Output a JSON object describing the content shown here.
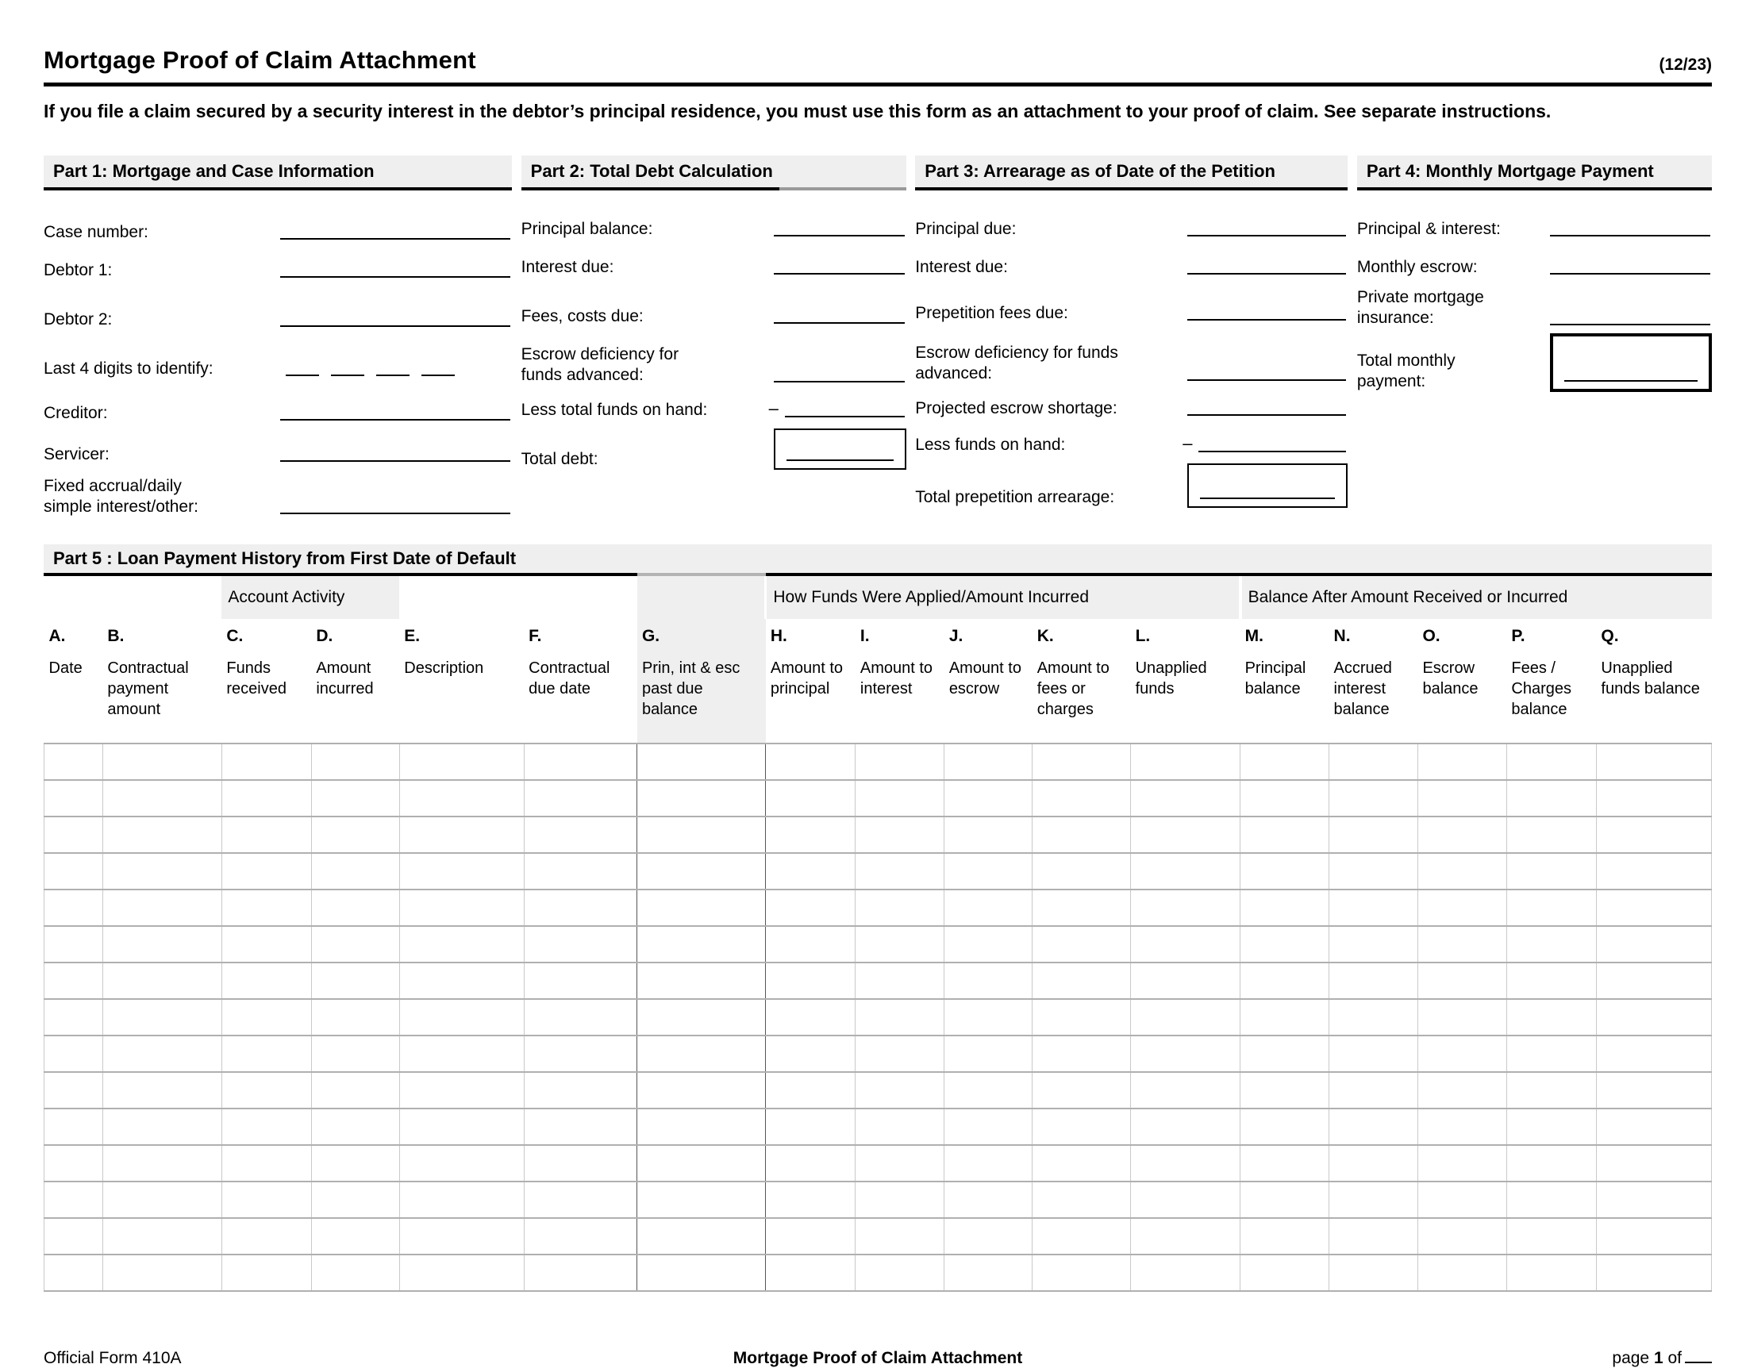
{
  "header": {
    "title": "Mortgage Proof of Claim Attachment",
    "edition": "(12/23)",
    "instruction": "If you file a claim secured by a security interest in the debtor’s principal residence, you must use this form as an attachment to your proof of claim. See separate instructions."
  },
  "parts": [
    {
      "id": "part1-mortgage-and-case-information",
      "title": "Part 1: Mortgage and Case Information",
      "fields": [
        {
          "name": "case-number",
          "label": "Case number:",
          "h": 52
        },
        {
          "name": "debtor-1",
          "label": "Debtor 1:",
          "h": 48
        },
        {
          "name": "debtor-2",
          "label": "Debtor 2:",
          "h": 62
        },
        {
          "name": "last-4-digits",
          "label": "Last 4 digits to identify:",
          "type": "digits",
          "h": 62
        },
        {
          "name": "creditor",
          "label": "Creditor:",
          "h": 56
        },
        {
          "name": "servicer",
          "label": "Servicer:",
          "h": 52
        },
        {
          "name": "fixed-accrual",
          "label": "Fixed accrual/daily\nsimple interest/other:",
          "h": 66
        }
      ]
    },
    {
      "id": "part2-total-debt-calculation",
      "title": "Part 2: Total Debt Calculation",
      "fields": [
        {
          "name": "principal-balance",
          "label": "Principal balance:",
          "h": 48
        },
        {
          "name": "interest-due",
          "label": "Interest due:",
          "h": 48
        },
        {
          "name": "fees-costs-due",
          "label": "Fees, costs due:",
          "h": 62
        },
        {
          "name": "escrow-deficiency-funds-advanced",
          "label": "Escrow deficiency for\nfunds advanced:",
          "h": 74
        },
        {
          "name": "less-total-funds-on-hand",
          "label": "Less total funds on hand:",
          "prefix": "–",
          "h": 44
        },
        {
          "name": "total-debt",
          "label": "Total debt:",
          "boxed": true,
          "h": 62
        }
      ]
    },
    {
      "id": "part3-arrearage-as-of-petition-date",
      "title": "Part 3: Arrearage as of Date of the Petition",
      "fields": [
        {
          "name": "principal-due",
          "label": "Principal due:",
          "h": 48
        },
        {
          "name": "interest-due-arrearage",
          "label": "Interest due:",
          "h": 48
        },
        {
          "name": "prepetition-fees-due",
          "label": "Prepetition fees due:",
          "h": 58
        },
        {
          "name": "escrow-deficiency-funds-advanced-arrearage",
          "label": "Escrow deficiency for funds\nadvanced:",
          "h": 76
        },
        {
          "name": "projected-escrow-shortage",
          "label": "Projected escrow shortage:",
          "h": 44
        },
        {
          "name": "less-funds-on-hand",
          "label": "Less funds on hand:",
          "prefix": "–",
          "h": 46
        },
        {
          "name": "total-prepetition-arrearage",
          "label": "Total prepetition arrearage:",
          "boxed": true,
          "h": 66
        }
      ]
    },
    {
      "id": "part4-monthly-mortgage-payment",
      "title": "Part 4: Monthly Mortgage Payment",
      "fields": [
        {
          "name": "principal-and-interest",
          "label": "Principal & interest:",
          "h": 48
        },
        {
          "name": "monthly-escrow",
          "label": "Monthly escrow:",
          "h": 48
        },
        {
          "name": "private-mortgage-insurance",
          "label": "Private mortgage\ninsurance:",
          "h": 64
        },
        {
          "name": "total-monthly-payment",
          "label": "Total monthly\npayment:",
          "boxed": true,
          "h": 80
        }
      ]
    }
  ],
  "part5": {
    "title": "Part 5 : Loan Payment History from First Date of Default",
    "groups": [
      {
        "label": "",
        "span": 2,
        "shaded": false
      },
      {
        "label": "Account Activity",
        "span": 2,
        "shaded": true
      },
      {
        "label": "",
        "span": 2,
        "shaded": false
      },
      {
        "label": "",
        "span": 1,
        "shaded": true
      },
      {
        "label": "How Funds Were Applied/Amount Incurred",
        "span": 5,
        "shaded": true
      },
      {
        "label": "Balance After Amount Received or Incurred",
        "span": 5,
        "shaded": true
      }
    ],
    "columns": [
      {
        "letter": "A.",
        "label": "Date",
        "w": 3.52,
        "shaded": false
      },
      {
        "letter": "B.",
        "label": "Contractual payment amount",
        "w": 7.14,
        "shaded": false
      },
      {
        "letter": "C.",
        "label": "Funds received",
        "w": 5.38,
        "shaded": false
      },
      {
        "letter": "D.",
        "label": "Amount incurred",
        "w": 5.28,
        "shaded": false
      },
      {
        "letter": "E.",
        "label": "Description",
        "w": 7.47,
        "shaded": false
      },
      {
        "letter": "F.",
        "label": "Contractual due date",
        "w": 6.8,
        "shaded": false
      },
      {
        "letter": "G.",
        "label": "Prin, int & esc past due balance",
        "w": 7.71,
        "shaded": true
      },
      {
        "letter": "H.",
        "label": "Amount to principal",
        "w": 5.38,
        "shaded": false
      },
      {
        "letter": "I.",
        "label": "Amount to interest",
        "w": 5.33,
        "shaded": false
      },
      {
        "letter": "J.",
        "label": "Amount to escrow",
        "w": 5.28,
        "shaded": false
      },
      {
        "letter": "K.",
        "label": "Amount to fees or charges",
        "w": 5.9,
        "shaded": false
      },
      {
        "letter": "L.",
        "label": "Unapplied funds",
        "w": 6.57,
        "shaded": false
      },
      {
        "letter": "M.",
        "label": "Principal balance",
        "w": 5.33,
        "shaded": false
      },
      {
        "letter": "N.",
        "label": "Accrued interest balance",
        "w": 5.33,
        "shaded": false
      },
      {
        "letter": "O.",
        "label": "Escrow balance",
        "w": 5.33,
        "shaded": false
      },
      {
        "letter": "P.",
        "label": "Fees / Charges balance",
        "w": 5.38,
        "shaded": false
      },
      {
        "letter": "Q.",
        "label": "Unapplied funds balance",
        "w": 6.9,
        "shaded": false
      }
    ],
    "row_count": 15
  },
  "footer": {
    "left": "Official Form 410A",
    "center": "Mortgage Proof of Claim Attachment",
    "page_label": "page",
    "page_number": "1",
    "of_label": "of"
  },
  "colors": {
    "band_gray": "#efefef",
    "rule_black": "#000000",
    "grid_gray": "#b0b0b0"
  }
}
